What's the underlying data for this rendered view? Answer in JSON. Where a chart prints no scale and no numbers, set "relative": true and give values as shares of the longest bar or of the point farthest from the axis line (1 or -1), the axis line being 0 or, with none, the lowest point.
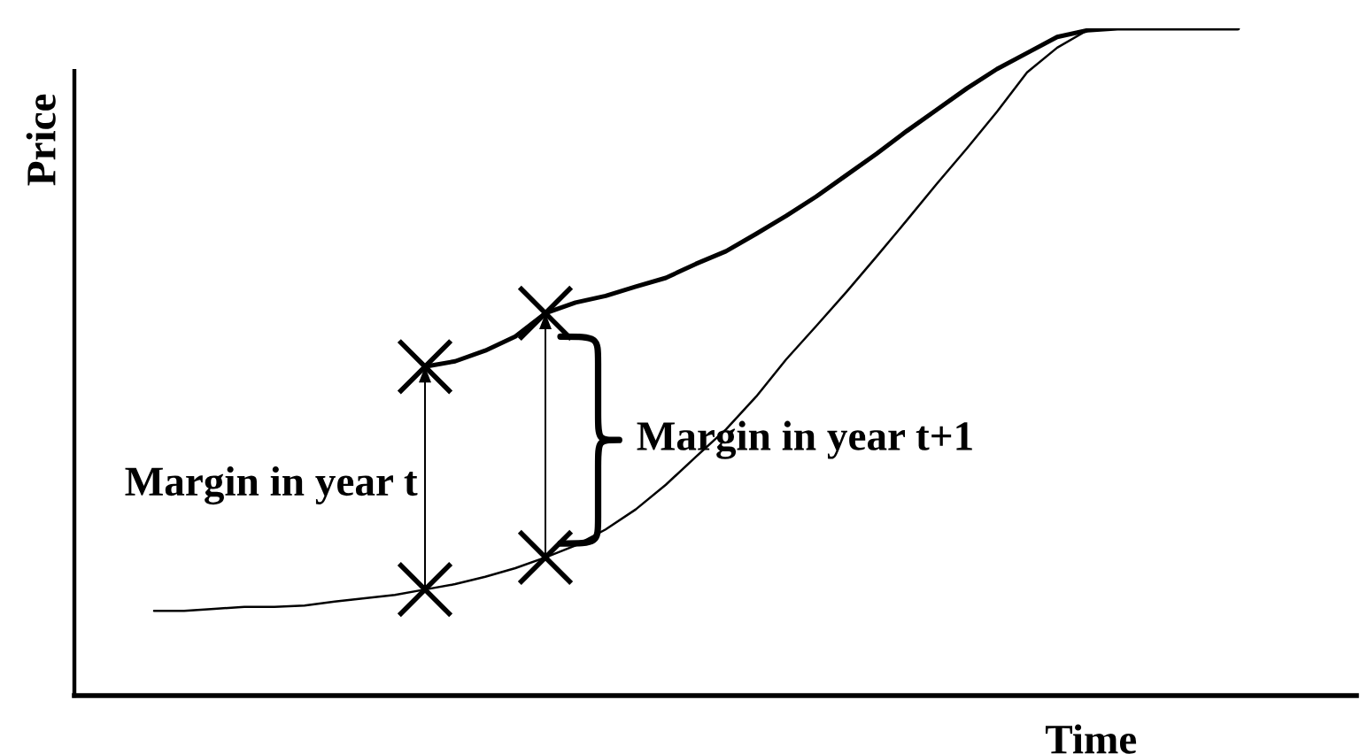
{
  "chart_data": {
    "type": "line",
    "relative": true,
    "tick_labels": false,
    "xlabel": "Time",
    "ylabel": "Price",
    "categories": [
      null,
      null,
      null,
      null,
      null,
      null,
      null,
      null,
      null,
      null,
      null,
      null,
      null,
      null,
      null,
      null,
      null,
      null,
      null,
      null,
      null,
      null,
      null,
      null,
      null,
      null,
      null,
      null,
      null,
      null,
      null,
      null,
      null,
      null,
      null,
      null,
      null
    ],
    "series": [
      {
        "color": "#000000",
        "values": [
          null,
          null,
          null,
          null,
          null,
          null,
          null,
          null,
          null,
          0.493,
          0.501,
          0.517,
          0.538,
          0.573,
          0.589,
          0.599,
          0.613,
          0.626,
          0.647,
          0.666,
          0.692,
          0.719,
          0.748,
          0.78,
          0.812,
          0.846,
          0.878,
          0.91,
          0.939,
          0.963,
          0.987,
          0.997,
          1,
          1,
          1,
          1,
          1
        ]
      },
      {
        "color": "#000000",
        "values": [
          0.127,
          0.127,
          0.13,
          0.133,
          0.133,
          0.135,
          0.141,
          0.146,
          0.151,
          0.159,
          0.167,
          0.178,
          0.191,
          0.207,
          0.225,
          0.249,
          0.279,
          0.316,
          0.358,
          0.399,
          0.448,
          0.504,
          0.554,
          0.605,
          0.658,
          0.712,
          0.767,
          0.82,
          0.875,
          0.934,
          0.971,
          0.997,
          1,
          1,
          1,
          1,
          1
        ]
      },
      {
        "color": "#000000",
        "marker": "cross",
        "values": [
          null,
          null,
          null,
          null,
          null,
          null,
          null,
          null,
          null,
          0.493,
          null,
          null,
          null,
          0.573,
          null,
          null,
          null,
          null,
          null,
          null,
          null,
          null,
          null,
          null,
          null,
          null,
          null,
          null,
          null,
          null,
          null,
          null,
          null,
          null,
          null,
          null,
          null
        ]
      },
      {
        "color": "#000000",
        "marker": "cross",
        "values": [
          null,
          null,
          null,
          null,
          null,
          null,
          null,
          null,
          null,
          0.159,
          null,
          null,
          null,
          0.207,
          null,
          null,
          null,
          null,
          null,
          null,
          null,
          null,
          null,
          null,
          null,
          null,
          null,
          null,
          null,
          null,
          null,
          null,
          null,
          null,
          null,
          null,
          null
        ]
      }
    ],
    "annotations": [
      "Margin in year t",
      "Margin in year t+1"
    ]
  }
}
